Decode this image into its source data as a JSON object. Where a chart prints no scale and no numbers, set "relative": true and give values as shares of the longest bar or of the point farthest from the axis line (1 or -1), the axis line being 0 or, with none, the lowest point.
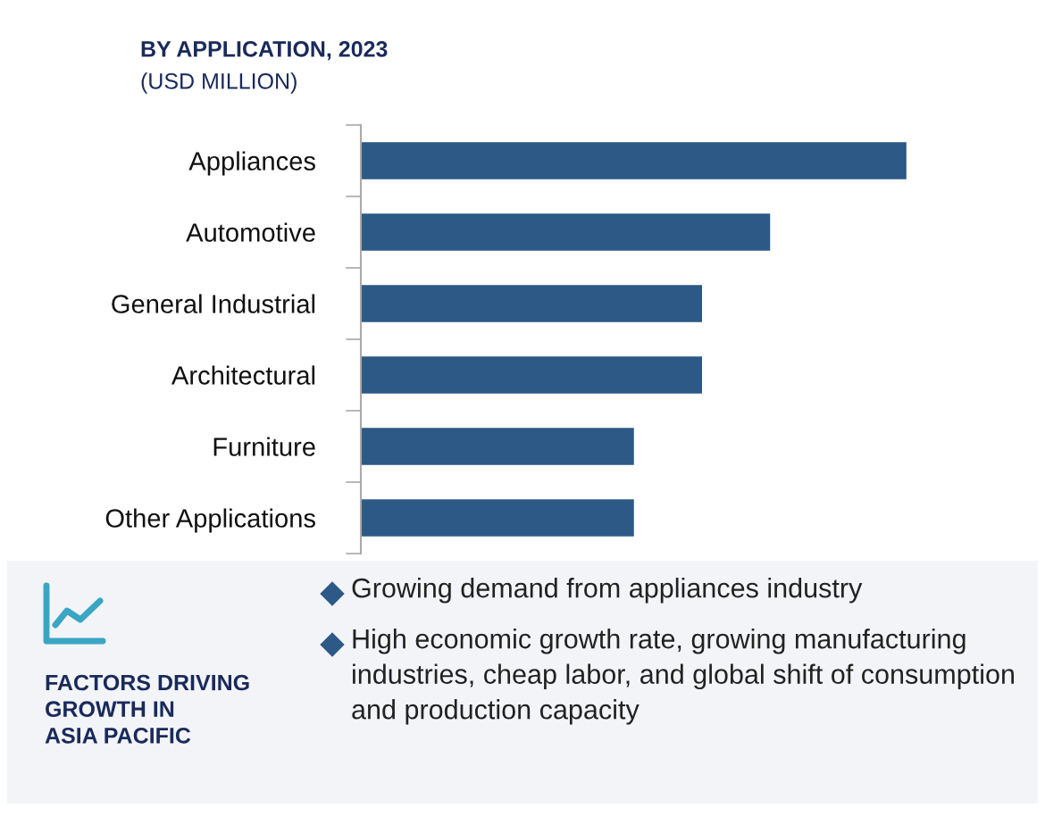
{
  "chart_data": {
    "type": "bar",
    "orientation": "horizontal",
    "relative": true,
    "title": "BY APPLICATION, 2023",
    "subtitle": "(USD MILLION)",
    "categories": [
      "Appliances",
      "Automotive",
      "General Industrial",
      "Architectural",
      "Furniture",
      "Other Applications"
    ],
    "values": [
      1,
      0.75,
      0.625,
      0.625,
      0.5,
      0.5
    ],
    "color": "#2d5986",
    "annotations": [
      "Growing demand from appliances industry",
      "High economic growth rate, growing manufacturing industries, cheap labor, and global shift of consumption and production capacity",
      "FACTORS DRIVING\nGROWTH IN\nASIA PACIFIC"
    ]
  }
}
